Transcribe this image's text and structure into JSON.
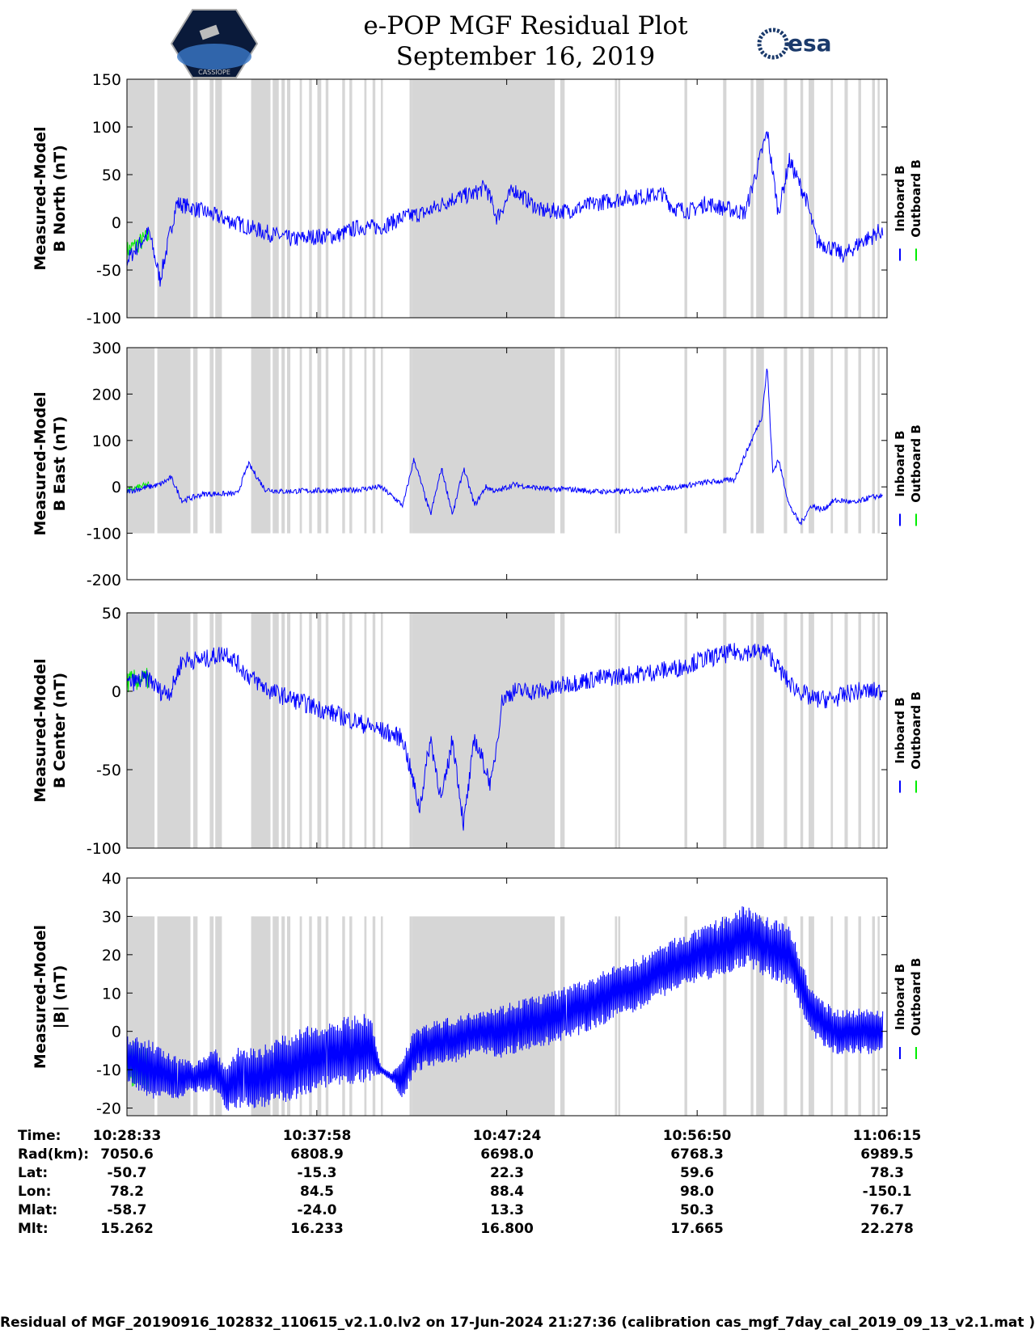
{
  "header": {
    "title": "e-POP MGF Residual Plot",
    "date": "September 16, 2019",
    "logo_left_text": "CASSIOPE",
    "logo_right_text": "esa"
  },
  "colors": {
    "inboard": "#0000ff",
    "outboard": "#00ee00",
    "shade": "#d6d6d6",
    "axis": "#000000"
  },
  "chart_data": [
    {
      "type": "line",
      "ylabel": [
        "Measured-Model",
        "B North (nT)"
      ],
      "ylim": [
        -100,
        150
      ],
      "yticks": [
        -100,
        -50,
        0,
        50,
        100,
        150
      ],
      "shade_range": [
        -100,
        150
      ],
      "legend": [
        "Inboard B",
        "Outboard B"
      ],
      "x_minutes": [
        0,
        4,
        6,
        9,
        12,
        17,
        22,
        26,
        30,
        34,
        38,
        42,
        46,
        50,
        54,
        59,
        63,
        65,
        67,
        70,
        75,
        80,
        85,
        90,
        95,
        97,
        99,
        102,
        105,
        108,
        112,
        116,
        118,
        120,
        123,
        125,
        127,
        130,
        133,
        135,
        136,
        137
      ],
      "inboard": [
        -40,
        -10,
        -60,
        20,
        15,
        5,
        -5,
        -12,
        -18,
        -15,
        -14,
        -5,
        -5,
        5,
        10,
        25,
        30,
        38,
        5,
        35,
        12,
        12,
        20,
        25,
        28,
        30,
        15,
        12,
        20,
        15,
        10,
        95,
        10,
        65,
        25,
        -20,
        -25,
        -35,
        -20,
        -15,
        -10,
        -10
      ],
      "outboard_x": [
        0,
        4
      ],
      "outboard": [
        -30,
        -15
      ]
    },
    {
      "type": "line",
      "ylabel": [
        "Measured-Model",
        "B East (nT)"
      ],
      "ylim": [
        -200,
        300
      ],
      "yticks": [
        -200,
        -100,
        0,
        100,
        200,
        300
      ],
      "shade_range": [
        -100,
        300
      ],
      "legend": [
        "Inboard B",
        "Outboard B"
      ],
      "x_minutes": [
        0,
        4,
        6,
        8,
        10,
        14,
        20,
        22,
        25,
        28,
        34,
        40,
        46,
        50,
        52,
        55,
        57,
        59,
        61,
        63,
        65,
        67,
        70,
        73,
        76,
        80,
        85,
        90,
        95,
        100,
        105,
        110,
        115,
        116,
        117,
        118,
        120,
        122,
        124,
        126,
        128,
        130,
        132,
        134,
        136,
        137
      ],
      "inboard": [
        -10,
        0,
        5,
        20,
        -30,
        -15,
        -15,
        50,
        -5,
        -10,
        -8,
        -8,
        0,
        -40,
        60,
        -60,
        40,
        -60,
        40,
        -40,
        0,
        -10,
        5,
        0,
        -5,
        -5,
        -10,
        -10,
        -5,
        0,
        10,
        15,
        150,
        260,
        30,
        60,
        -40,
        -80,
        -40,
        -50,
        -30,
        -30,
        -35,
        -25,
        -20,
        -20
      ],
      "outboard_x": [
        0,
        4
      ],
      "outboard": [
        -8,
        5
      ]
    },
    {
      "type": "line",
      "ylabel": [
        "Measured-Model",
        "B Center (nT)"
      ],
      "ylim": [
        -100,
        50
      ],
      "yticks": [
        -100,
        -50,
        0,
        50
      ],
      "shade_range": [
        -100,
        50
      ],
      "legend": [
        "Inboard B",
        "Outboard B"
      ],
      "x_minutes": [
        0,
        4,
        6,
        8,
        10,
        14,
        18,
        22,
        26,
        30,
        34,
        38,
        42,
        46,
        50,
        53,
        55,
        57,
        59,
        61,
        63,
        66,
        68,
        70,
        72,
        76,
        80,
        85,
        90,
        95,
        100,
        104,
        110,
        116,
        120,
        124,
        128,
        132,
        137
      ],
      "inboard": [
        5,
        8,
        0,
        0,
        20,
        20,
        25,
        10,
        0,
        -5,
        -10,
        -15,
        -20,
        -25,
        -30,
        -75,
        -30,
        -70,
        -30,
        -85,
        -30,
        -60,
        -5,
        0,
        0,
        0,
        5,
        8,
        10,
        12,
        15,
        20,
        25,
        25,
        5,
        -5,
        -5,
        0,
        0
      ],
      "outboard_x": [
        0,
        4
      ],
      "outboard": [
        6,
        8
      ]
    },
    {
      "type": "line",
      "ylabel": [
        "Measured-Model",
        "|B| (nT)"
      ],
      "ylim": [
        -22,
        40
      ],
      "yticks": [
        -20,
        -10,
        0,
        10,
        20,
        30,
        40
      ],
      "shade_range": [
        -22,
        30
      ],
      "legend": [
        "Inboard B",
        "Outboard B"
      ],
      "x_minutes": [
        0,
        4,
        8,
        12,
        16,
        18,
        20,
        24,
        28,
        32,
        36,
        40,
        44,
        46,
        48,
        50,
        52,
        56,
        60,
        64,
        68,
        72,
        76,
        80,
        84,
        88,
        92,
        96,
        100,
        104,
        108,
        112,
        116,
        120,
        124,
        128,
        132,
        137
      ],
      "inboard": [
        -7,
        -10,
        -12,
        -12,
        -10,
        -15,
        -12,
        -12,
        -10,
        -8,
        -6,
        -5,
        -4,
        -10,
        -12,
        -12,
        -5,
        -3,
        -2,
        0,
        0,
        2,
        3,
        5,
        7,
        10,
        12,
        15,
        18,
        20,
        22,
        25,
        22,
        20,
        5,
        0,
        0,
        0
      ],
      "amplitude": [
        6,
        8,
        6,
        4,
        6,
        6,
        8,
        8,
        9,
        9,
        9,
        9,
        9,
        1,
        1,
        6,
        6,
        6,
        6,
        6,
        7,
        7,
        7,
        7,
        7,
        7,
        7,
        7,
        7,
        7,
        8,
        8,
        8,
        8,
        6,
        6,
        6,
        6
      ],
      "outboard_x": [
        0,
        4
      ],
      "outboard": [
        -8,
        -10
      ]
    }
  ],
  "shade_intervals_min": [
    [
      0,
      5
    ],
    [
      5.5,
      11.5
    ],
    [
      12,
      12.8
    ],
    [
      15,
      15.7
    ],
    [
      16,
      17.2
    ],
    [
      22.5,
      22.9
    ],
    [
      22.7,
      26
    ],
    [
      26.4,
      27.5
    ],
    [
      28,
      28.6
    ],
    [
      29,
      29.6
    ],
    [
      31.3,
      31.7
    ],
    [
      33,
      33.5
    ],
    [
      34.5,
      35.2
    ],
    [
      36,
      36.5
    ],
    [
      39,
      39.5
    ],
    [
      40.3,
      40.8
    ],
    [
      43,
      43.4
    ],
    [
      44.5,
      45
    ],
    [
      46,
      46
    ],
    [
      51.2,
      51.6
    ],
    [
      51.6,
      77.5
    ],
    [
      78.5,
      79.3
    ],
    [
      88.4,
      88.8
    ],
    [
      89,
      89
    ],
    [
      101,
      101.5
    ],
    [
      108,
      108.6
    ],
    [
      113,
      113.5
    ],
    [
      114,
      115.4
    ],
    [
      119,
      119.6
    ],
    [
      122,
      122.5
    ],
    [
      123.5,
      124.5
    ],
    [
      127.5,
      127.9
    ],
    [
      130,
      130.6
    ],
    [
      132.5,
      133
    ],
    [
      135,
      135.5
    ],
    [
      136,
      136.3
    ]
  ],
  "x_tick_minutes": [
    0,
    34.4,
    68.8,
    103.3
  ],
  "ephemeris": {
    "labels": [
      "Time:",
      "Rad(km):",
      "Lat:",
      "Lon:",
      "Mlat:",
      "Mlt:"
    ],
    "columns": [
      [
        "10:28:33",
        "7050.6",
        "-50.7",
        "78.2",
        "-58.7",
        "15.262"
      ],
      [
        "10:37:58",
        "6808.9",
        "-15.3",
        "84.5",
        "-24.0",
        "16.233"
      ],
      [
        "10:47:24",
        "6698.0",
        "22.3",
        "88.4",
        "13.3",
        "16.800"
      ],
      [
        "10:56:50",
        "6768.3",
        "59.6",
        "98.0",
        "50.3",
        "17.665"
      ],
      [
        "11:06:15",
        "6989.5",
        "78.3",
        "-150.1",
        "76.7",
        "22.278"
      ]
    ]
  },
  "footer": "Residual of MGF_20190916_102832_110615_v2.1.0.lv2 on 17-Jun-2024 21:27:36 (calibration cas_mgf_7day_cal_2019_09_13_v2.1.mat )"
}
